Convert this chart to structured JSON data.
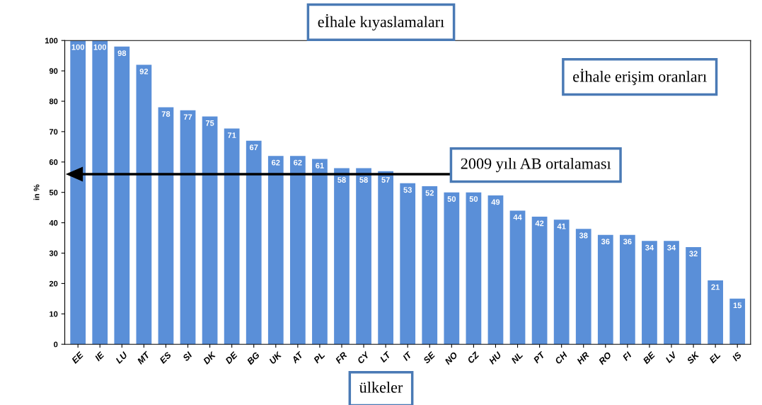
{
  "chart_data": {
    "type": "bar",
    "title": "eİhale kıyaslamaları",
    "xlabel": "ülkeler",
    "ylabel": "in %",
    "categories": [
      "EE",
      "IE",
      "LU",
      "MT",
      "ES",
      "SI",
      "DK",
      "DE",
      "BG",
      "UK",
      "AT",
      "PL",
      "FR",
      "CY",
      "LT",
      "IT",
      "SE",
      "NO",
      "CZ",
      "HU",
      "NL",
      "PT",
      "CH",
      "HR",
      "RO",
      "FI",
      "BE",
      "LV",
      "SK",
      "EL",
      "IS"
    ],
    "values": [
      100,
      100,
      98,
      92,
      78,
      77,
      75,
      71,
      67,
      62,
      62,
      61,
      58,
      58,
      57,
      53,
      52,
      50,
      50,
      49,
      44,
      42,
      41,
      38,
      36,
      36,
      34,
      34,
      32,
      21,
      15
    ],
    "color": "#5a8fd8",
    "data_labels": true,
    "ylim": [
      0,
      100
    ],
    "yticks": [
      0,
      10,
      20,
      30,
      40,
      50,
      60,
      70,
      80,
      90,
      100
    ],
    "grid": false,
    "ref_lines": [
      {
        "axis": "y",
        "value": 56,
        "label": "2009 yılı AB ortalaması",
        "color": "#000000"
      }
    ],
    "annotations": [
      "eİhale erişim oranları"
    ]
  }
}
